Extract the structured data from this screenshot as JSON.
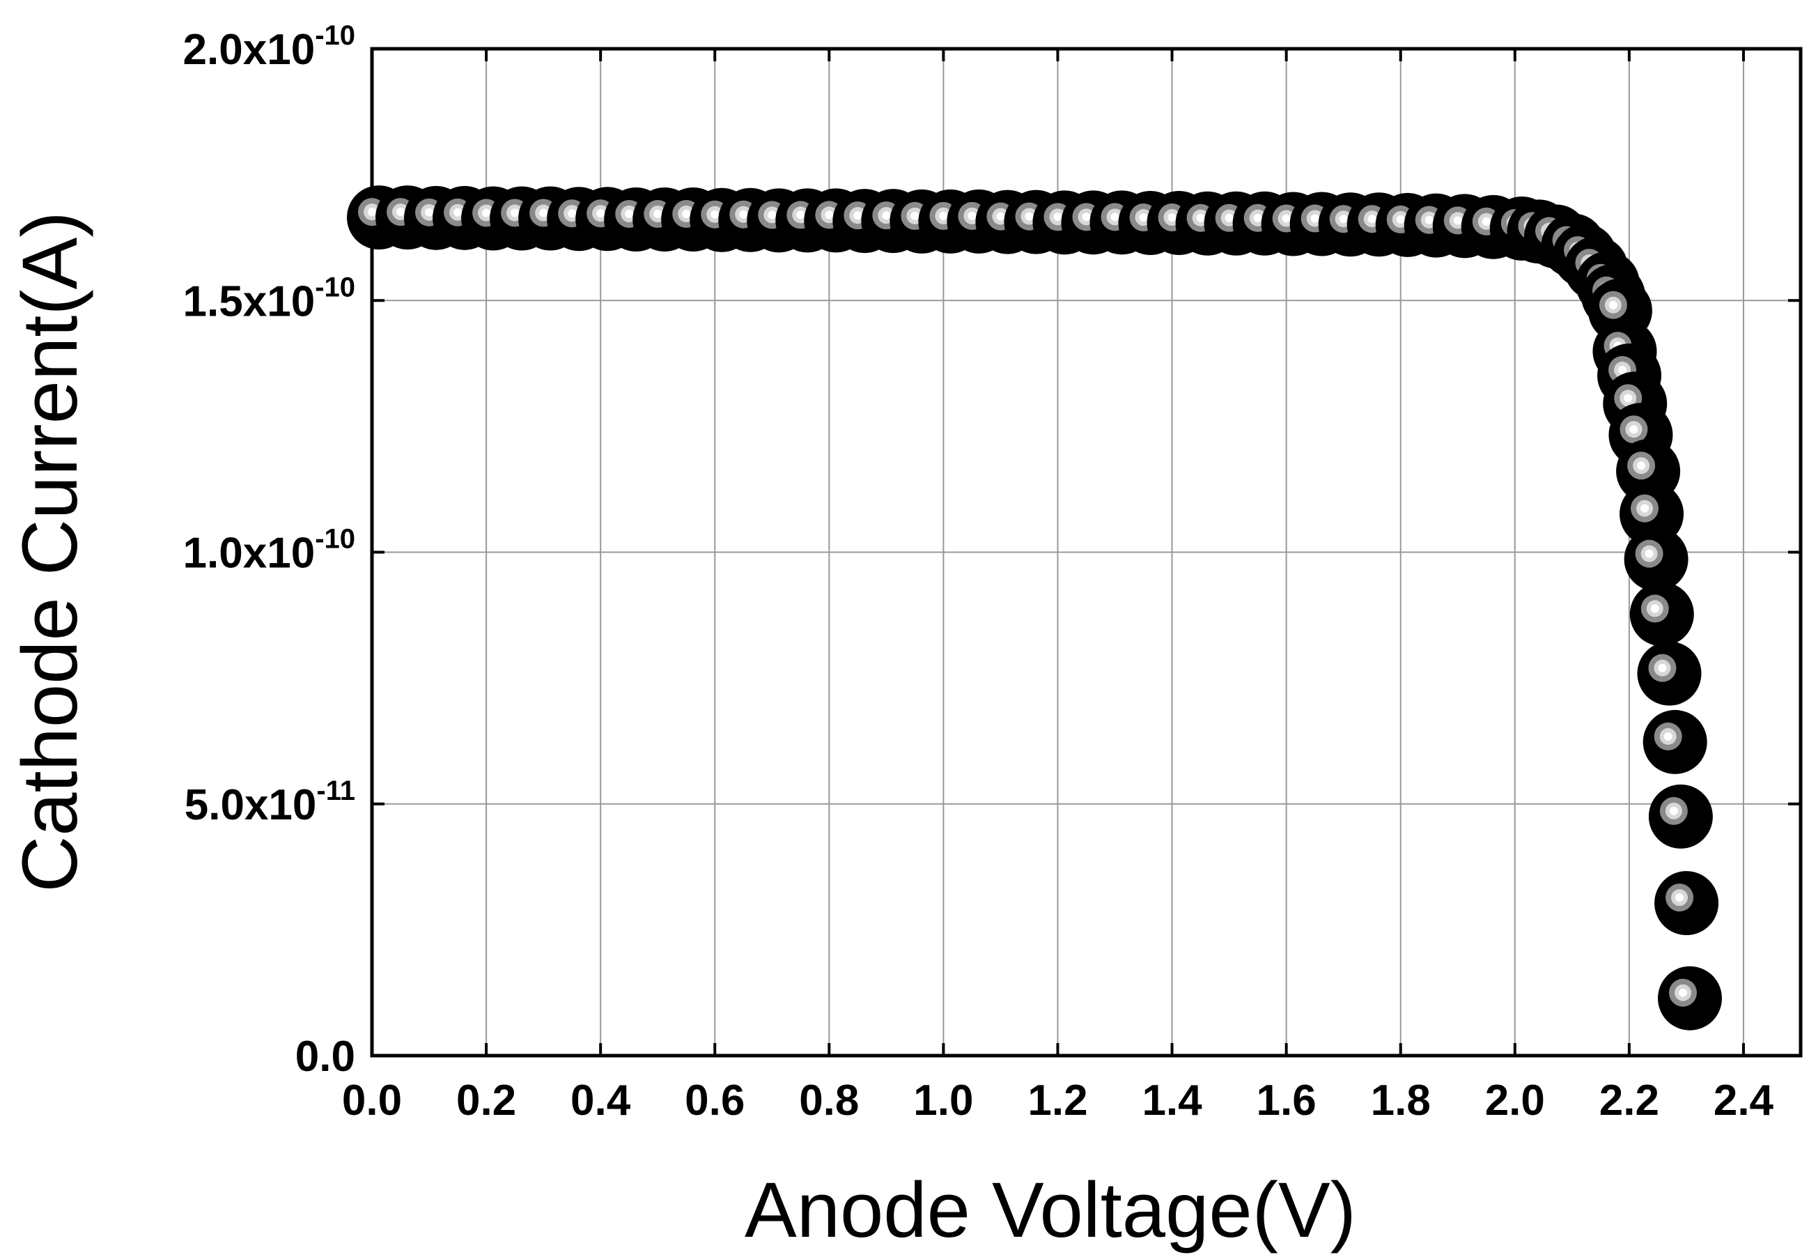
{
  "chart_data": {
    "type": "scatter",
    "x_label": "Anode Voltage(V)",
    "y_label": "Cathode Current(A)",
    "xlim": [
      0,
      2.5
    ],
    "ylim": [
      0,
      2e-10
    ],
    "xticks": [
      {
        "value": 0,
        "label": "0.0"
      },
      0.2,
      0.4,
      0.6,
      0.8,
      {
        "value": 1,
        "label": "1.0"
      },
      1.2,
      1.4,
      1.6,
      1.8,
      {
        "value": 2,
        "label": "2.0"
      },
      2.2,
      2.4
    ],
    "yticks": [
      {
        "value": 0,
        "label": "0.0"
      },
      {
        "value": 5e-11,
        "label": "5.0x10",
        "exponent": "-11"
      },
      {
        "value": 1e-10,
        "label": "1.0x10",
        "exponent": "-10"
      },
      {
        "value": 1.5e-10,
        "label": "1.5x10",
        "exponent": "-10"
      },
      {
        "value": 2e-10,
        "label": "2.0x10",
        "exponent": "-10"
      }
    ],
    "grid": true,
    "series": [
      {
        "color": "#000000",
        "x": [
          0,
          0.05,
          0.1,
          0.15,
          0.2,
          0.25,
          0.3,
          0.35,
          0.4,
          0.45,
          0.5,
          0.55,
          0.6,
          0.65,
          0.7,
          0.75,
          0.8,
          0.85,
          0.9,
          0.95,
          1,
          1.05,
          1.1,
          1.15,
          1.2,
          1.25,
          1.3,
          1.35,
          1.4,
          1.45,
          1.5,
          1.55,
          1.6,
          1.65,
          1.7,
          1.75,
          1.8,
          1.85,
          1.9,
          1.95,
          2,
          2.03,
          2.06,
          2.09,
          2.11,
          2.13,
          2.15,
          2.16,
          2.172,
          2.18,
          2.188,
          2.198,
          2.208,
          2.221,
          2.227,
          2.235,
          2.245,
          2.258,
          2.268,
          2.278,
          2.288,
          2.294
        ],
        "values": [
          1.676e-10,
          1.676e-10,
          1.675e-10,
          1.675e-10,
          1.674e-10,
          1.674e-10,
          1.674e-10,
          1.673e-10,
          1.673e-10,
          1.672e-10,
          1.672e-10,
          1.672e-10,
          1.671e-10,
          1.671e-10,
          1.67e-10,
          1.67e-10,
          1.67e-10,
          1.669e-10,
          1.669e-10,
          1.668e-10,
          1.668e-10,
          1.668e-10,
          1.667e-10,
          1.667e-10,
          1.666e-10,
          1.666e-10,
          1.666e-10,
          1.665e-10,
          1.665e-10,
          1.664e-10,
          1.664e-10,
          1.664e-10,
          1.663e-10,
          1.663e-10,
          1.662e-10,
          1.662e-10,
          1.661e-10,
          1.66e-10,
          1.659e-10,
          1.657e-10,
          1.654e-10,
          1.648e-10,
          1.638e-10,
          1.62e-10,
          1.6e-10,
          1.575e-10,
          1.545e-10,
          1.52e-10,
          1.491e-10,
          1.41e-10,
          1.362e-10,
          1.306e-10,
          1.244e-10,
          1.172e-10,
          1.087e-10,
          9.97e-11,
          8.88e-11,
          7.7e-11,
          6.34e-11,
          4.86e-11,
          3.14e-11,
          1.25e-11
        ]
      }
    ]
  }
}
